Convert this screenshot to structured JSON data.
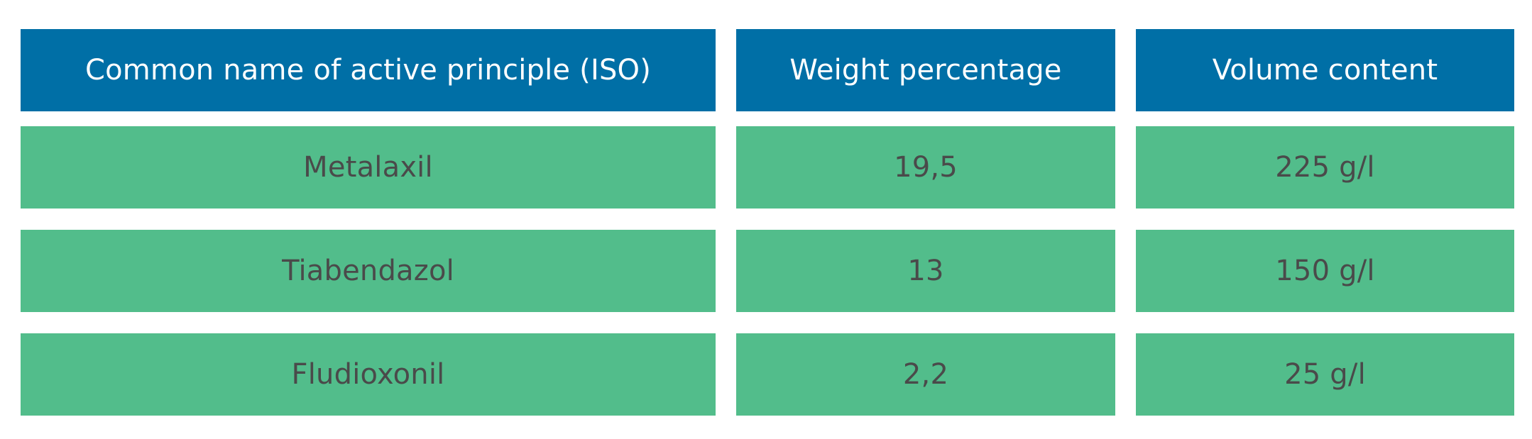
{
  "colors": {
    "header_bg": "#006fa6",
    "row_bg": "#52bd8b",
    "header_text": "#ffffff",
    "row_text": "#4a4a4a"
  },
  "table": {
    "headers": [
      "Common name of active principle (ISO)",
      "Weight percentage",
      "Volume content"
    ],
    "rows": [
      [
        "Metalaxil",
        "19,5",
        "225 g/l"
      ],
      [
        "Tiabendazol",
        "13",
        "150 g/l"
      ],
      [
        "Fludioxonil",
        "2,2",
        "25 g/l"
      ]
    ]
  }
}
